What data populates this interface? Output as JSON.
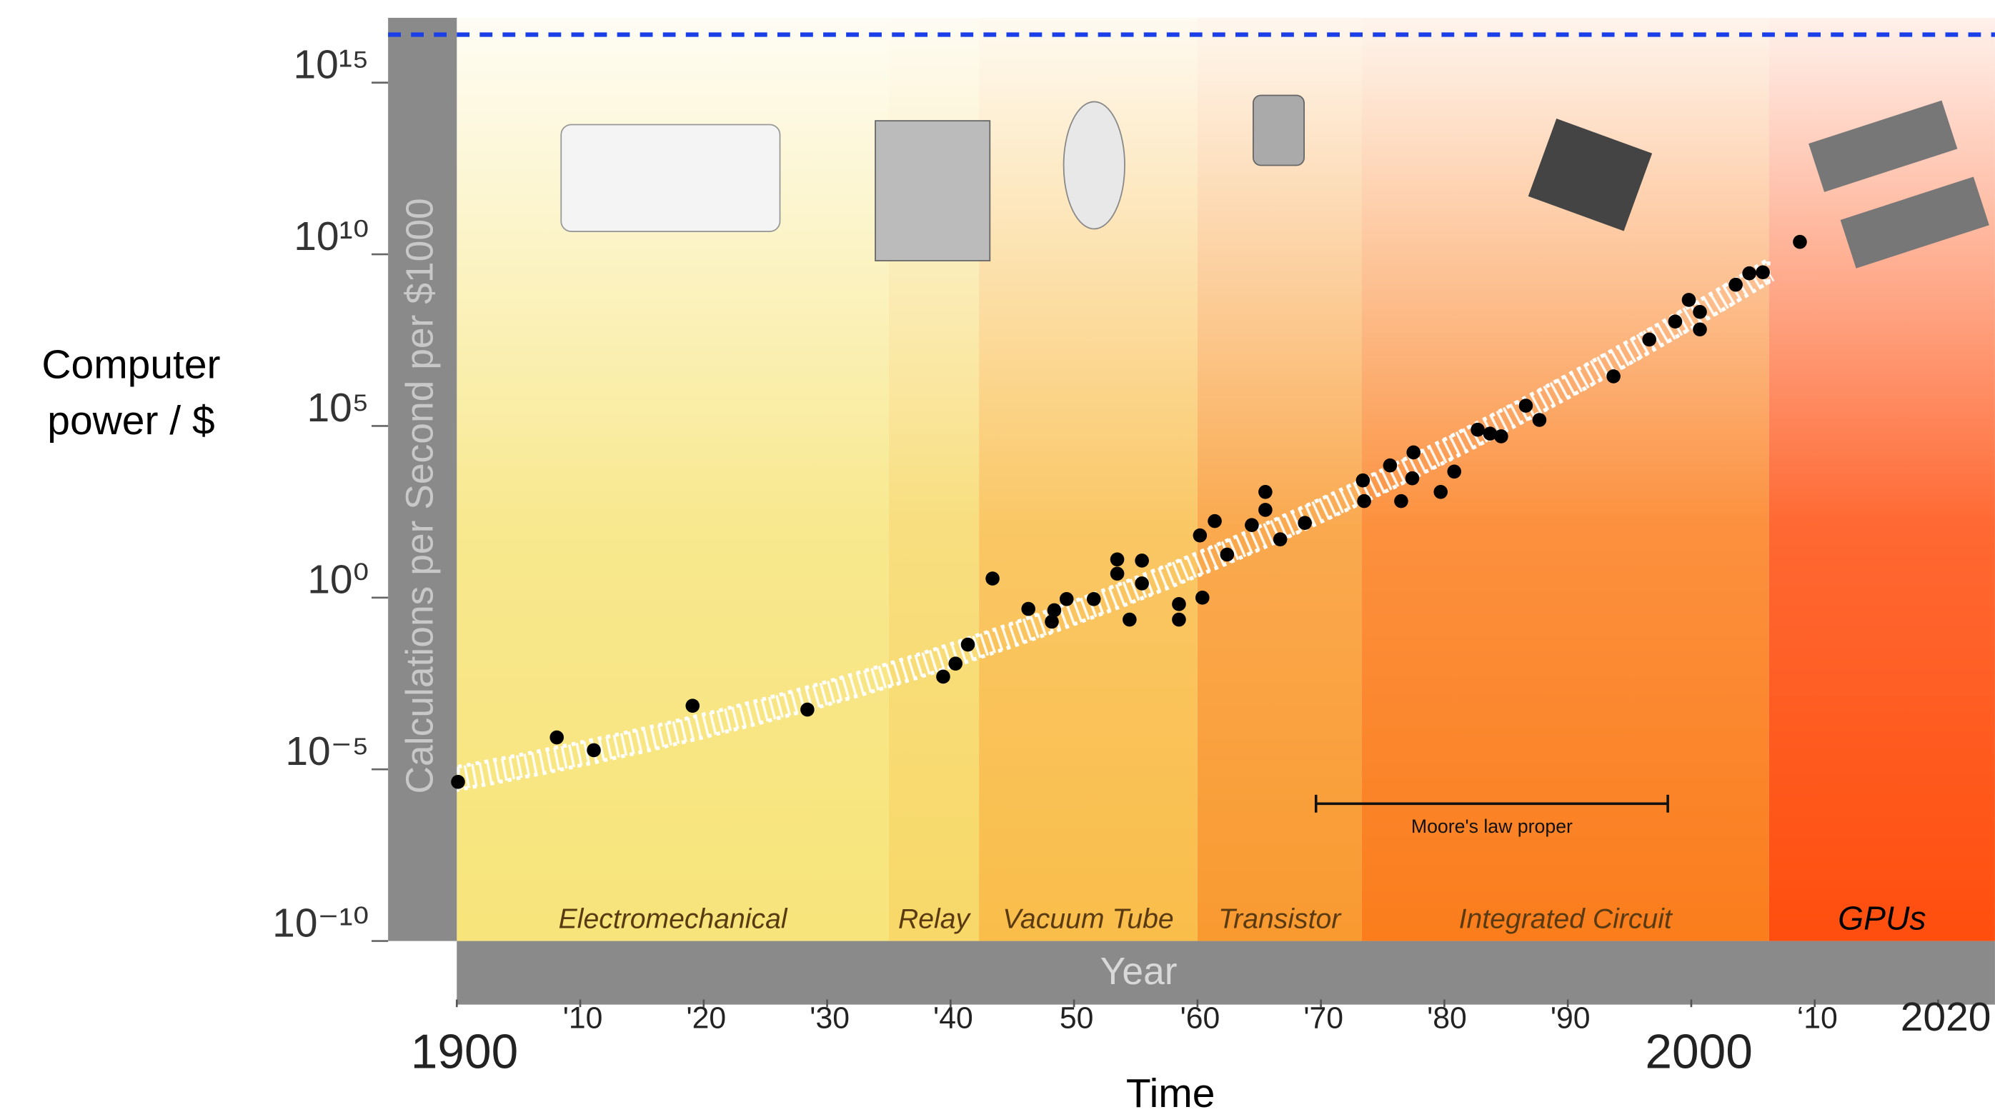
{
  "chart_data": {
    "type": "scatter",
    "log_scale": "y",
    "outer_ylabel": [
      "Computer",
      "power / $"
    ],
    "ylabel": "Calculations per Second per $1000",
    "xlabel": "Year",
    "outer_xlabel": "Time",
    "xlim": [
      1900,
      2024.6
    ],
    "ylim": [
      1e-10,
      1e+17
    ],
    "xticks": [
      1900,
      {
        "value": 1910,
        "label": "'10"
      },
      {
        "value": 1920,
        "label": "'20"
      },
      {
        "value": 1930,
        "label": "'30"
      },
      {
        "value": 1940,
        "label": "'40"
      },
      {
        "value": 1950,
        "label": "50"
      },
      {
        "value": 1960,
        "label": "'60"
      },
      {
        "value": 1970,
        "label": "'70"
      },
      {
        "value": 1980,
        "label": "'80"
      },
      {
        "value": 1990,
        "label": "'90"
      },
      2000,
      {
        "value": 2010,
        "label": "‘10"
      },
      2020
    ],
    "yticks": [
      {
        "value": 1e-10,
        "label": "10⁻¹⁰"
      },
      {
        "value": 1e-05,
        "label": "10⁻⁵"
      },
      {
        "value": 1,
        "label": "10⁰"
      },
      {
        "value": 100000.0,
        "label": "10⁵"
      },
      {
        "value": 10000000000.0,
        "label": "10¹⁰"
      },
      {
        "value": 1000000000000000.0,
        "label": "10¹⁵"
      }
    ],
    "eras": [
      {
        "name": "Electromechanical",
        "start": 1900,
        "end": 1935,
        "color": "#f7e47a"
      },
      {
        "name": "Relay",
        "start": 1935,
        "end": 1942.3,
        "color": "#f7d868"
      },
      {
        "name": "Vacuum Tube",
        "start": 1942.3,
        "end": 1960,
        "color": "#f9bd4a"
      },
      {
        "name": "Transistor",
        "start": 1960,
        "end": 1973.3,
        "color": "#f99a30"
      },
      {
        "name": "Integrated Circuit",
        "start": 1973.3,
        "end": 2006.3,
        "color": "#fb7d1c"
      },
      {
        "name": "GPUs",
        "start": 2006.3,
        "end": 2024.6,
        "color": "#ff4e0e"
      }
    ],
    "annotation": {
      "text": "Moore's law proper",
      "start": 1969.6,
      "end": 1998.1
    },
    "reference_line": {
      "value": 2.5e+16,
      "color": "#1a3ee8"
    },
    "series": [
      {
        "color": "#000000",
        "x": [
          1900.1,
          1908.1,
          1911.1,
          1919.1,
          1928.4,
          1939.4,
          1940.4,
          1941.4,
          1943.4,
          1946.3,
          1948.2,
          1948.4,
          1949.4,
          1951.6,
          1953.5,
          1953.5,
          1954.5,
          1955.5,
          1955.5,
          1958.5,
          1958.5,
          1960.4,
          1960.2,
          1961.4,
          1962.4,
          1964.4,
          1965.5,
          1965.5,
          1966.7,
          1968.7,
          1973.4,
          1973.5,
          1975.6,
          1976.5,
          1977.5,
          1977.4,
          1979.7,
          1980.8,
          1982.7,
          1983.7,
          1984.6,
          1986.6,
          1987.7,
          1993.7,
          1996.6,
          1998.7,
          1999.8,
          2000.7,
          2000.7,
          2003.6,
          2004.7,
          2005.8,
          2008.8
        ],
        "values": [
          4.3e-06,
          8.5e-05,
          3.6e-05,
          0.00071,
          0.00055,
          0.005,
          0.012,
          0.043,
          3.6,
          0.47,
          0.2,
          0.43,
          0.91,
          0.91,
          13,
          5.0,
          0.23,
          12,
          2.6,
          0.65,
          0.23,
          1,
          65,
          170,
          18,
          130,
          1200,
          360,
          50,
          150,
          2600,
          650,
          7100,
          650,
          17000,
          3000,
          1200,
          4700,
          78000,
          60000,
          50000,
          390000,
          150000,
          2800000.0,
          33000000.0,
          110000000.0,
          470000000.0,
          210000000.0,
          65000000.0,
          1300000000.0,
          2800000000.0,
          3000000000.0,
          23000000000.0
        ]
      }
    ]
  }
}
